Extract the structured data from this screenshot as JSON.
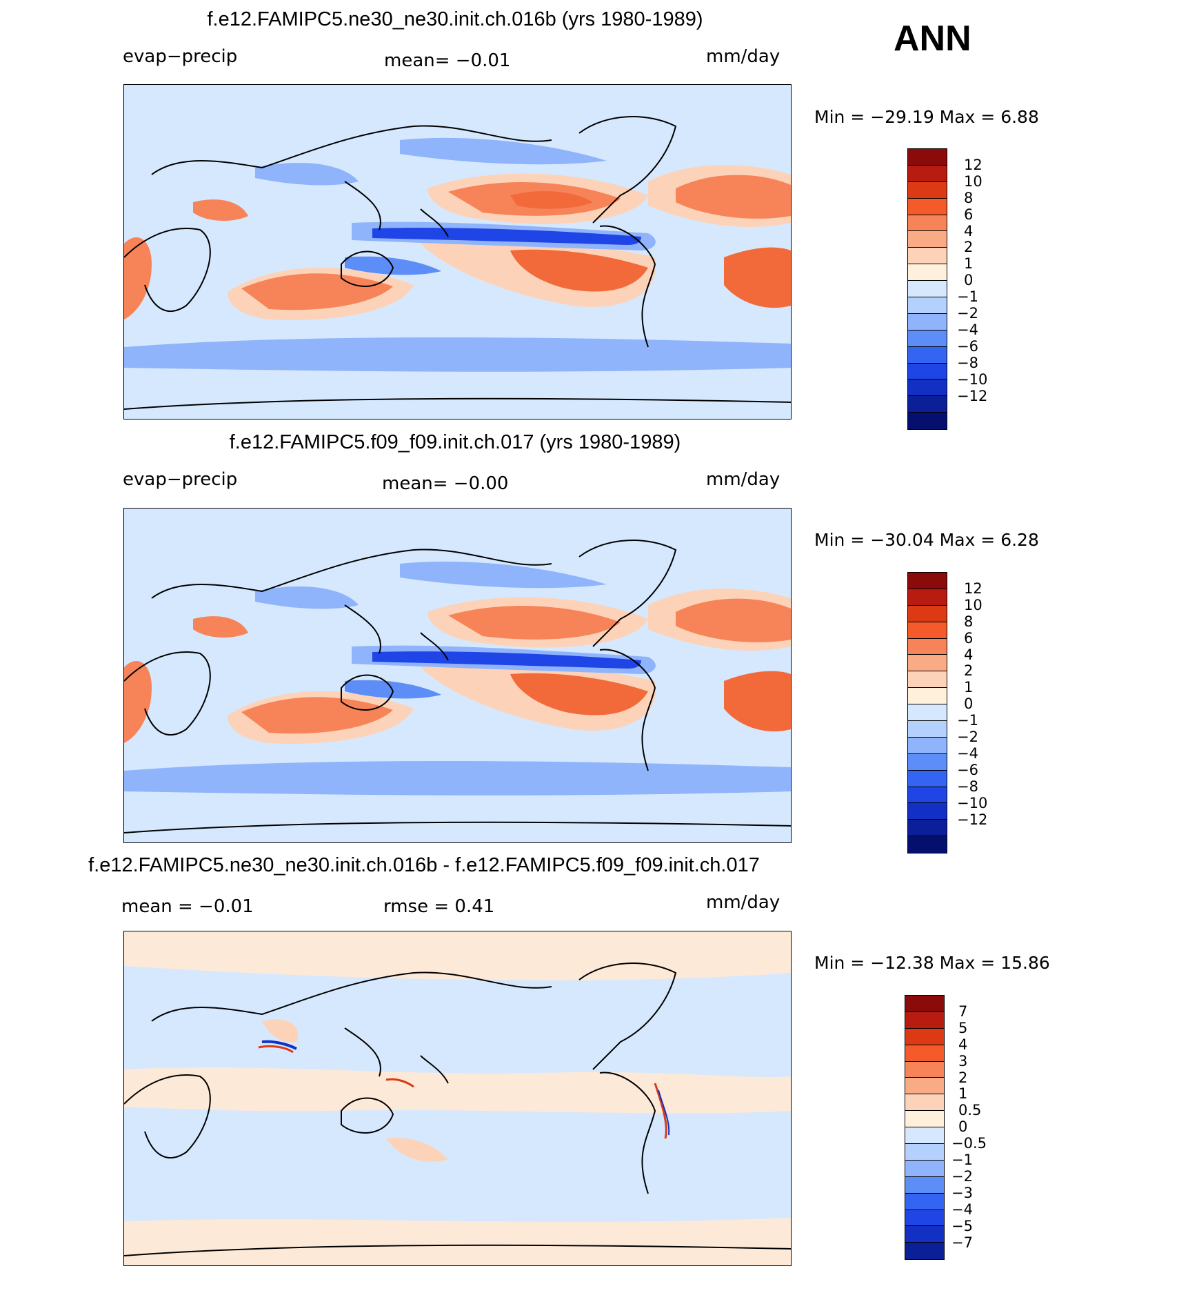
{
  "season": "ANN",
  "units": "mm/day",
  "panels": [
    {
      "title": "f.e12.FAMIPC5.ne30_ne30.init.ch.016b (yrs 1980-1989)",
      "variable": "evap−precip",
      "mean_label": "mean=   −0.01",
      "min_max": "Min  =  −29.19  Max  =     6.88",
      "colorbar": {
        "colors": [
          "#8b0a0a",
          "#b81c10",
          "#dc3a14",
          "#f45a2a",
          "#f78458",
          "#f9ab86",
          "#fcd3b8",
          "#fff0dc",
          "#d6e8fd",
          "#b4d0fc",
          "#8fb4fb",
          "#5d8ef7",
          "#3464f2",
          "#1f45e6",
          "#1230c4",
          "#0a1f98",
          "#040f6e"
        ],
        "labels": [
          "12",
          "10",
          "8",
          "6",
          "4",
          "2",
          "1",
          "0",
          "−1",
          "−2",
          "−4",
          "−6",
          "−8",
          "−10",
          "−12"
        ]
      }
    },
    {
      "title": "f.e12.FAMIPC5.f09_f09.init.ch.017 (yrs 1980-1989)",
      "variable": "evap−precip",
      "mean_label": "mean=   −0.00",
      "min_max": "Min  =  −30.04  Max  =     6.28",
      "colorbar": {
        "colors": [
          "#8b0a0a",
          "#b81c10",
          "#dc3a14",
          "#f45a2a",
          "#f78458",
          "#f9ab86",
          "#fcd3b8",
          "#fff0dc",
          "#d6e8fd",
          "#b4d0fc",
          "#8fb4fb",
          "#5d8ef7",
          "#3464f2",
          "#1f45e6",
          "#1230c4",
          "#0a1f98",
          "#040f6e"
        ],
        "labels": [
          "12",
          "10",
          "8",
          "6",
          "4",
          "2",
          "1",
          "0",
          "−1",
          "−2",
          "−4",
          "−6",
          "−8",
          "−10",
          "−12"
        ]
      }
    },
    {
      "title": "f.e12.FAMIPC5.ne30_ne30.init.ch.016b - f.e12.FAMIPC5.f09_f09.init.ch.017",
      "mean_label": "mean  =    −0.01",
      "rmse_label": "rmse  =      0.41",
      "min_max": "Min  =  −12.38  Max  =    15.86",
      "colorbar": {
        "colors": [
          "#8b0a0a",
          "#b81c10",
          "#dc3a14",
          "#f45a2a",
          "#f78458",
          "#f9ab86",
          "#fcd3b8",
          "#fff0dc",
          "#d6e8fd",
          "#b4d0fc",
          "#8fb4fb",
          "#5d8ef7",
          "#3464f2",
          "#1f45e6",
          "#1230c4",
          "#0a1f98"
        ],
        "labels": [
          "7",
          "5",
          "4",
          "3",
          "2",
          "1",
          "0.5",
          "0",
          "−0.5",
          "−1",
          "−2",
          "−3",
          "−4",
          "−5",
          "−7"
        ]
      }
    }
  ],
  "colors": {
    "ocean_light_blue": "#d6e8fd",
    "pale_orange": "#fcd3b8",
    "orange": "#f78458",
    "deep_orange": "#f26a3a",
    "blue": "#8fb4fb",
    "dark_blue": "#1f45e6",
    "pale_cream": "#fde9d8"
  }
}
